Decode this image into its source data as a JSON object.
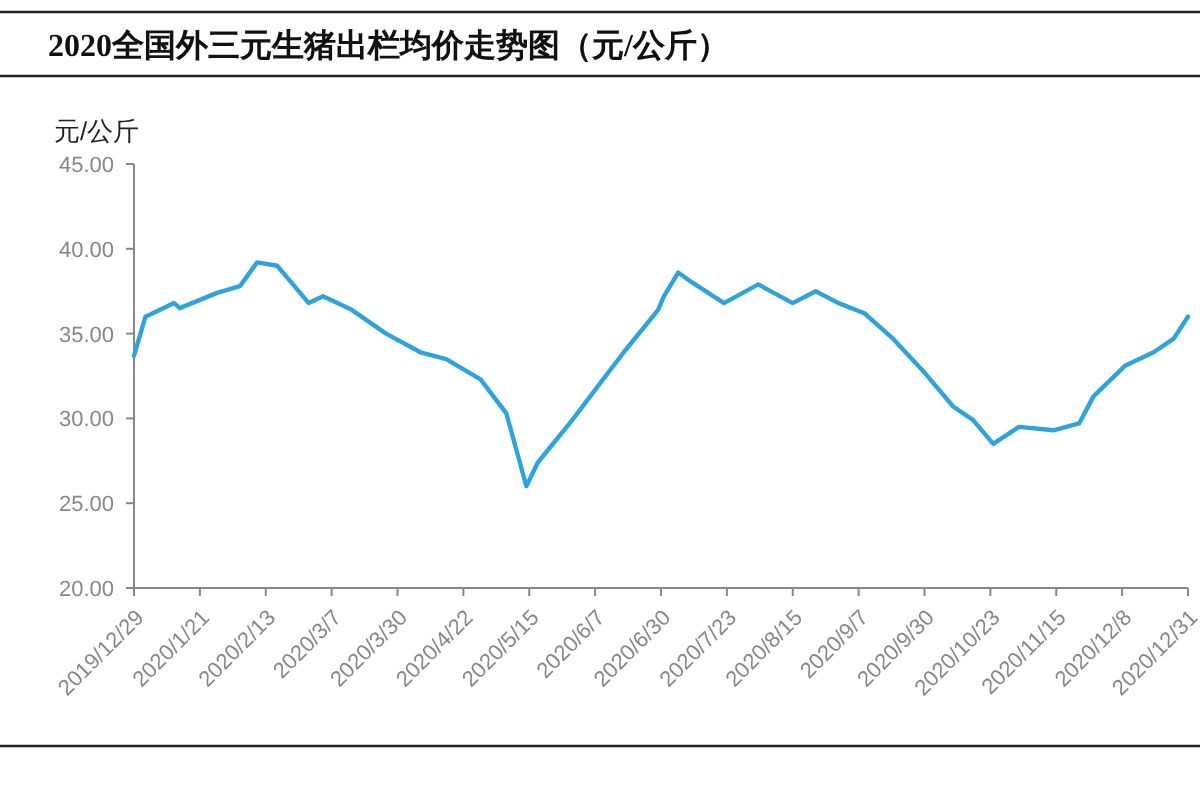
{
  "chart_data": {
    "type": "line",
    "title": "2020全国外三元生猪出栏均价走势图（元/公斤）",
    "ylabel": "元/公斤",
    "color": "#2fa4dc",
    "line_style": "solid",
    "x": [
      "2019-12-29",
      "2020-01-02",
      "2020-01-12",
      "2020-01-14",
      "2020-01-27",
      "2020-02-04",
      "2020-02-10",
      "2020-02-17",
      "2020-02-20",
      "2020-02-25",
      "2020-02-28",
      "2020-03-04",
      "2020-03-14",
      "2020-03-26",
      "2020-04-07",
      "2020-04-16",
      "2020-04-28",
      "2020-05-07",
      "2020-05-14",
      "2020-05-18",
      "2020-05-30",
      "2020-06-08",
      "2020-06-17",
      "2020-06-29",
      "2020-07-01",
      "2020-07-06",
      "2020-07-11",
      "2020-07-22",
      "2020-08-03",
      "2020-08-15",
      "2020-08-23",
      "2020-08-31",
      "2020-09-09",
      "2020-09-19",
      "2020-09-30",
      "2020-10-10",
      "2020-10-17",
      "2020-10-24",
      "2020-11-02",
      "2020-11-14",
      "2020-11-23",
      "2020-11-28",
      "2020-12-09",
      "2020-12-19",
      "2020-12-26",
      "2020-12-31"
    ],
    "values": [
      33.7,
      36.0,
      36.8,
      36.5,
      37.4,
      37.8,
      39.2,
      39.0,
      38.4,
      37.4,
      36.8,
      37.2,
      36.4,
      35.0,
      33.9,
      33.5,
      32.3,
      30.3,
      26.0,
      27.4,
      29.9,
      31.9,
      33.9,
      36.4,
      37.2,
      38.6,
      38.0,
      36.8,
      37.9,
      36.8,
      37.5,
      36.8,
      36.2,
      34.7,
      32.7,
      30.7,
      29.9,
      28.5,
      29.5,
      29.3,
      29.7,
      31.3,
      33.1,
      33.9,
      34.7,
      36.0
    ],
    "xlim": [
      "2019-12-29",
      "2020-12-31"
    ],
    "xticks": [
      {
        "value": "2019-12-29",
        "label": "2019/12/29"
      },
      {
        "value": "2020-01-21",
        "label": "2020/1/21"
      },
      {
        "value": "2020-02-13",
        "label": "2020/2/13"
      },
      {
        "value": "2020-03-07",
        "label": "2020/3/7"
      },
      {
        "value": "2020-03-30",
        "label": "2020/3/30"
      },
      {
        "value": "2020-04-22",
        "label": "2020/4/22"
      },
      {
        "value": "2020-05-15",
        "label": "2020/5/15"
      },
      {
        "value": "2020-06-07",
        "label": "2020/6/7"
      },
      {
        "value": "2020-06-30",
        "label": "2020/6/30"
      },
      {
        "value": "2020-07-23",
        "label": "2020/7/23"
      },
      {
        "value": "2020-08-15",
        "label": "2020/8/15"
      },
      {
        "value": "2020-09-07",
        "label": "2020/9/7"
      },
      {
        "value": "2020-09-30",
        "label": "2020/9/30"
      },
      {
        "value": "2020-10-23",
        "label": "2020/10/23"
      },
      {
        "value": "2020-11-15",
        "label": "2020/11/15"
      },
      {
        "value": "2020-12-08",
        "label": "2020/12/8"
      },
      {
        "value": "2020-12-31",
        "label": "2020/12/31"
      }
    ],
    "ylim": [
      20,
      45
    ],
    "yticks": [
      {
        "value": 20,
        "label": "20.00"
      },
      {
        "value": 25,
        "label": "25.00"
      },
      {
        "value": 30,
        "label": "30.00"
      },
      {
        "value": 35,
        "label": "35.00"
      },
      {
        "value": 40,
        "label": "40.00"
      },
      {
        "value": 45,
        "label": "45.00"
      }
    ]
  }
}
